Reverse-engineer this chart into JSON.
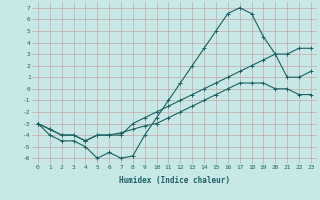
{
  "title": "",
  "xlabel": "Humidex (Indice chaleur)",
  "ylabel": "",
  "bg_color": "#c8e8e8",
  "grid_color": "#c4a8a8",
  "line_color": "#1a6060",
  "xlim": [
    -0.5,
    23.5
  ],
  "ylim": [
    -6.5,
    7.5
  ],
  "xticks": [
    0,
    1,
    2,
    3,
    4,
    5,
    6,
    7,
    8,
    9,
    10,
    11,
    12,
    13,
    14,
    15,
    16,
    17,
    18,
    19,
    20,
    21,
    22,
    23
  ],
  "yticks": [
    -6,
    -5,
    -4,
    -3,
    -2,
    -1,
    0,
    1,
    2,
    3,
    4,
    5,
    6,
    7
  ],
  "line1_x": [
    0,
    1,
    2,
    3,
    4,
    5,
    6,
    7,
    8,
    9,
    10,
    11,
    12,
    13,
    14,
    15,
    16,
    17,
    18,
    19,
    20,
    21,
    22,
    23
  ],
  "line1_y": [
    -3,
    -4,
    -4.5,
    -4.5,
    -5,
    -6,
    -5.5,
    -6,
    -5.8,
    -4,
    -2.5,
    -1,
    0.5,
    2,
    3.5,
    5,
    6.5,
    7,
    6.5,
    4.5,
    3,
    1,
    1,
    1.5
  ],
  "line2_x": [
    0,
    1,
    2,
    3,
    4,
    5,
    6,
    7,
    8,
    9,
    10,
    11,
    12,
    13,
    14,
    15,
    16,
    17,
    18,
    19,
    20,
    21,
    22,
    23
  ],
  "line2_y": [
    -3,
    -3.5,
    -4,
    -4,
    -4.5,
    -4,
    -4,
    -4,
    -3,
    -2.5,
    -2,
    -1.5,
    -1,
    -0.5,
    0,
    0.5,
    1,
    1.5,
    2,
    2.5,
    3,
    3,
    3.5,
    3.5
  ],
  "line3_x": [
    0,
    1,
    2,
    3,
    4,
    5,
    6,
    7,
    8,
    9,
    10,
    11,
    12,
    13,
    14,
    15,
    16,
    17,
    18,
    19,
    20,
    21,
    22,
    23
  ],
  "line3_y": [
    -3,
    -3.5,
    -4,
    -4,
    -4.5,
    -4,
    -4,
    -3.8,
    -3.5,
    -3.2,
    -3,
    -2.5,
    -2,
    -1.5,
    -1,
    -0.5,
    0,
    0.5,
    0.5,
    0.5,
    0,
    0,
    -0.5,
    -0.5
  ]
}
